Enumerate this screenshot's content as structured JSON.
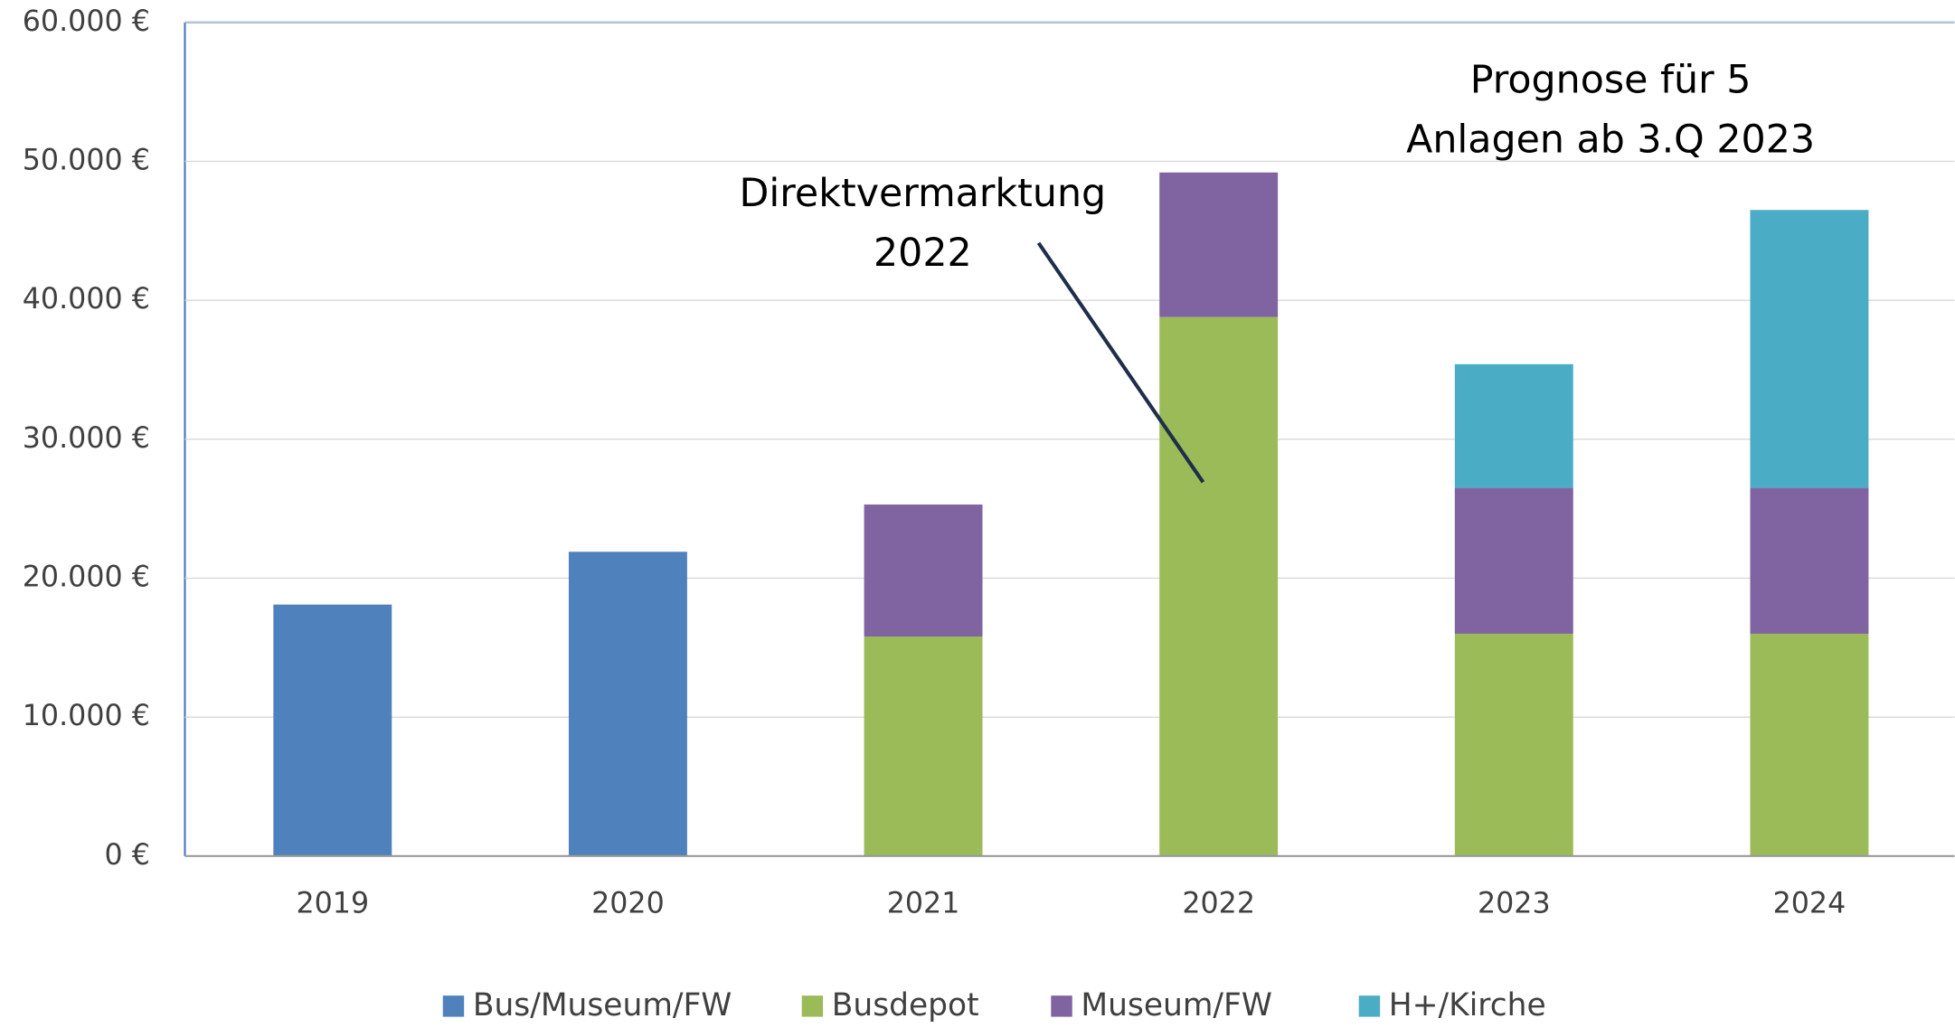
{
  "chart_data": {
    "type": "stacked_bar",
    "categories": [
      "2019",
      "2020",
      "2021",
      "2022",
      "2023",
      "2024"
    ],
    "series": [
      {
        "name": "Bus/Museum/FW",
        "color": "#4f81bd",
        "values": [
          18100,
          21900,
          null,
          null,
          null,
          null
        ]
      },
      {
        "name": "Busdepot",
        "color": "#9bbb59",
        "values": [
          null,
          null,
          15800,
          38800,
          16000,
          16000
        ]
      },
      {
        "name": "Museum/FW",
        "color": "#8064a2",
        "values": [
          null,
          null,
          9500,
          10400,
          10500,
          10500
        ]
      },
      {
        "name": "H+/Kirche",
        "color": "#4bacc6",
        "values": [
          null,
          null,
          null,
          null,
          8900,
          20000
        ]
      }
    ],
    "ylim": [
      0,
      60000
    ],
    "yticks": [
      {
        "value": 0,
        "label": "0 €"
      },
      {
        "value": 10000,
        "label": "10.000 €"
      },
      {
        "value": 20000,
        "label": "20.000 €"
      },
      {
        "value": 30000,
        "label": "30.000 €"
      },
      {
        "value": 40000,
        "label": "40.000 €"
      },
      {
        "value": 50000,
        "label": "50.000 €"
      },
      {
        "value": 60000,
        "label": "60.000 €"
      }
    ],
    "grid": true,
    "legend": "bottom",
    "annotations": [
      {
        "lines": [
          "Direktvermarktung",
          "2022"
        ]
      },
      {
        "lines": [
          "Prognose für 5",
          "Anlagen ab 3.Q 2023"
        ]
      }
    ]
  }
}
